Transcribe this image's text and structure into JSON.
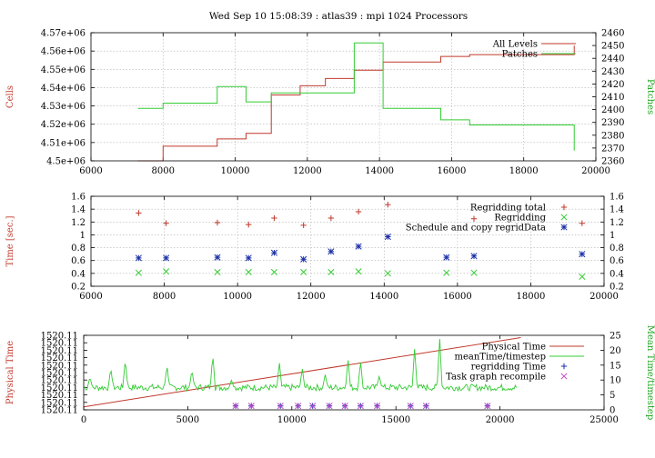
{
  "page_title": "Wed Sep 10 15:08:39 : atlas39 : mpi 1024 Processors",
  "chart_data": [
    {
      "type": "line",
      "panel": "top",
      "xlim": [
        6000,
        20000
      ],
      "xticks": [
        6000,
        8000,
        10000,
        12000,
        14000,
        16000,
        18000,
        20000
      ],
      "ylabel": "Cells",
      "ylim": [
        4500000,
        4570000
      ],
      "yticks": [
        4500000,
        4510000,
        4520000,
        4530000,
        4540000,
        4550000,
        4560000,
        4570000
      ],
      "ytick_labels": [
        "4.5e+06",
        "4.51e+06",
        "4.52e+06",
        "4.53e+06",
        "4.54e+06",
        "4.55e+06",
        "4.56e+06",
        "4.57e+06"
      ],
      "y2label": "Patches",
      "y2lim": [
        2360,
        2460
      ],
      "y2ticks": [
        2360,
        2370,
        2380,
        2390,
        2400,
        2410,
        2420,
        2430,
        2440,
        2450,
        2460
      ],
      "grid": true,
      "legend_position": "top-right",
      "series": [
        {
          "name": "All Levels",
          "axis": "left",
          "color": "#c0392b",
          "style": "step",
          "x": [
            7300,
            8000,
            9500,
            10300,
            11000,
            11800,
            12500,
            13300,
            14100,
            15700,
            16500,
            19400
          ],
          "y": [
            4500000,
            4508000,
            4512000,
            4515000,
            4536000,
            4541000,
            4545000,
            4549500,
            4554000,
            4557000,
            4558000,
            4563000
          ]
        },
        {
          "name": "Patches",
          "axis": "right",
          "color": "#33cc33",
          "style": "step",
          "x": [
            7300,
            8000,
            9500,
            10300,
            11000,
            11800,
            12500,
            13300,
            14100,
            15700,
            16500,
            19400
          ],
          "y": [
            2401,
            2405,
            2418,
            2406,
            2413,
            2413,
            2413,
            2452,
            2401,
            2392,
            2388,
            2368
          ]
        }
      ]
    },
    {
      "type": "scatter",
      "panel": "middle",
      "xlim": [
        6000,
        20000
      ],
      "xticks": [
        6000,
        8000,
        10000,
        12000,
        14000,
        16000,
        18000,
        20000
      ],
      "ylabel": "Time [sec.]",
      "ylim": [
        0.2,
        1.6
      ],
      "yticks": [
        0.2,
        0.4,
        0.6,
        0.8,
        1.0,
        1.2,
        1.4,
        1.6
      ],
      "ytick_labels": [
        "0.2",
        "0.4",
        "0.6",
        "0.8",
        "1",
        "1.2",
        "1.4",
        "1.6"
      ],
      "grid": true,
      "legend_position": "top-right",
      "series": [
        {
          "name": "Regridding total",
          "marker": "plus",
          "color": "#c0392b",
          "x": [
            7300,
            8050,
            9450,
            10300,
            11000,
            11800,
            12550,
            13300,
            14100,
            16450,
            19400
          ],
          "y": [
            1.34,
            1.18,
            1.19,
            1.16,
            1.26,
            1.15,
            1.26,
            1.36,
            1.47,
            1.25,
            1.18
          ]
        },
        {
          "name": "Regridding",
          "marker": "cross",
          "color": "#33cc33",
          "x": [
            7300,
            8050,
            9450,
            10300,
            11000,
            11800,
            12550,
            13300,
            14100,
            15700,
            16450,
            19400
          ],
          "y": [
            0.41,
            0.43,
            0.42,
            0.42,
            0.42,
            0.42,
            0.42,
            0.43,
            0.4,
            0.41,
            0.41,
            0.35
          ]
        },
        {
          "name": "Schedule and copy regridData",
          "marker": "star",
          "color": "#1a2fa8",
          "x": [
            7300,
            8050,
            9450,
            10300,
            11000,
            11800,
            12550,
            13300,
            14100,
            15700,
            16450,
            19400
          ],
          "y": [
            0.64,
            0.64,
            0.65,
            0.64,
            0.72,
            0.62,
            0.74,
            0.82,
            0.97,
            0.65,
            0.67,
            0.7
          ]
        }
      ]
    },
    {
      "type": "line",
      "panel": "bottom",
      "xlim": [
        0,
        25000
      ],
      "xticks": [
        0,
        5000,
        10000,
        15000,
        20000,
        25000
      ],
      "ylabel": "Physical Time",
      "ylim": [
        0,
        10
      ],
      "ytick_labels": [
        "1520.11",
        "1520.11",
        "1520.11",
        "1520.11",
        "1520.11",
        "1520.11",
        "1520.11",
        "1520.11",
        "1520.11",
        "1520.11",
        "1520.11"
      ],
      "y2label": "Mean Time/timestep",
      "y2lim": [
        0,
        25
      ],
      "y2ticks": [
        0,
        5,
        10,
        15,
        20,
        25
      ],
      "grid": false,
      "legend_position": "top-right",
      "series": [
        {
          "name": "Physical Time",
          "axis": "left",
          "color": "#c0392b",
          "x": [
            0,
            21000
          ],
          "y": [
            0.4,
            9.7
          ]
        },
        {
          "name": "meanTime/timestep",
          "axis": "right",
          "color": "#33cc33",
          "baseline": 7.5,
          "spikes": [
            [
              300,
              11
            ],
            [
              1300,
              14
            ],
            [
              2000,
              17
            ],
            [
              4000,
              15
            ],
            [
              5200,
              13.5
            ],
            [
              6200,
              18.5
            ],
            [
              7100,
              10
            ],
            [
              9400,
              16
            ],
            [
              10500,
              14
            ],
            [
              11600,
              12
            ],
            [
              12700,
              17
            ],
            [
              13300,
              16.5
            ],
            [
              14200,
              11.5
            ],
            [
              15900,
              21
            ],
            [
              17100,
              24.5
            ]
          ]
        },
        {
          "name": "regridding Time",
          "axis": "right",
          "marker": "plus",
          "color": "#1a2fa8",
          "x": [
            7300,
            8050,
            9450,
            10300,
            11000,
            11800,
            12550,
            13300,
            14100,
            15700,
            16450,
            19400
          ],
          "y": [
            1.3,
            1.3,
            1.3,
            1.3,
            1.3,
            1.3,
            1.3,
            1.3,
            1.3,
            1.3,
            1.3,
            1.3
          ]
        },
        {
          "name": "Task graph recompile",
          "axis": "right",
          "marker": "cross",
          "color": "#cc44cc",
          "x": [
            7300,
            8050,
            9450,
            10300,
            11000,
            11800,
            12550,
            13300,
            14100,
            15700,
            16450,
            19400
          ],
          "y": [
            1.3,
            1.3,
            1.3,
            1.3,
            1.3,
            1.3,
            1.3,
            1.3,
            1.3,
            1.3,
            1.3,
            1.3
          ]
        }
      ]
    }
  ]
}
